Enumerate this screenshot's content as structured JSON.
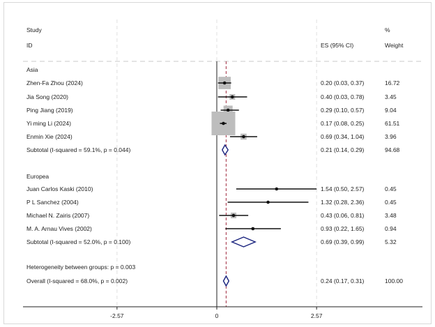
{
  "chart_data": {
    "type": "forest",
    "header": {
      "study": "Study",
      "id": "ID",
      "es": "ES (95% CI)",
      "pct": "%",
      "weight": "Weight"
    },
    "xaxis": {
      "ticks": [
        -2.57,
        0,
        2.57
      ],
      "tick_labels": [
        "-2.57",
        "0",
        "2.57"
      ],
      "range": [
        -5.2,
        5.2
      ]
    },
    "overall_line": 0.24,
    "rows": [
      {
        "kind": "group",
        "label": "Asia"
      },
      {
        "kind": "study",
        "label": "Zhen-Fa Zhou (2024)",
        "es": 0.2,
        "lo": 0.03,
        "hi": 0.37,
        "es_text": "0.20 (0.03, 0.37)",
        "weight": "16.72"
      },
      {
        "kind": "study",
        "label": "Jia Song (2020)",
        "es": 0.4,
        "lo": 0.03,
        "hi": 0.78,
        "es_text": "0.40 (0.03, 0.78)",
        "weight": "3.45"
      },
      {
        "kind": "study",
        "label": "Ping Jiang (2019)",
        "es": 0.29,
        "lo": 0.1,
        "hi": 0.57,
        "es_text": "0.29 (0.10, 0.57)",
        "weight": "9.04"
      },
      {
        "kind": "study",
        "label": "Yi ming Li (2024)",
        "es": 0.17,
        "lo": 0.08,
        "hi": 0.25,
        "es_text": "0.17 (0.08, 0.25)",
        "weight": "61.51"
      },
      {
        "kind": "study",
        "label": "Enmin Xie (2024)",
        "es": 0.69,
        "lo": 0.34,
        "hi": 1.04,
        "es_text": "0.69 (0.34, 1.04)",
        "weight": "3.96"
      },
      {
        "kind": "subtotal",
        "label": "Subtotal  (I-squared = 59.1%, p = 0.044)",
        "es": 0.21,
        "lo": 0.14,
        "hi": 0.29,
        "es_text": "0.21 (0.14, 0.29)",
        "weight": "94.68"
      },
      {
        "kind": "blank"
      },
      {
        "kind": "group",
        "label": "Europea"
      },
      {
        "kind": "study",
        "label": "Juan Carlos Kaski (2010)",
        "es": 1.54,
        "lo": 0.5,
        "hi": 2.57,
        "es_text": "1.54 (0.50, 2.57)",
        "weight": "0.45"
      },
      {
        "kind": "study",
        "label": "P L Sanchez (2004)",
        "es": 1.32,
        "lo": 0.28,
        "hi": 2.36,
        "es_text": "1.32 (0.28, 2.36)",
        "weight": "0.45"
      },
      {
        "kind": "study",
        "label": "Michael N. Zairis (2007)",
        "es": 0.43,
        "lo": 0.06,
        "hi": 0.81,
        "es_text": "0.43 (0.06, 0.81)",
        "weight": "3.48"
      },
      {
        "kind": "study",
        "label": "M. A. Arnau Vives (2002)",
        "es": 0.93,
        "lo": 0.22,
        "hi": 1.65,
        "es_text": "0.93 (0.22, 1.65)",
        "weight": "0.94"
      },
      {
        "kind": "subtotal",
        "label": "Subtotal  (I-squared = 52.0%, p = 0.100)",
        "es": 0.69,
        "lo": 0.39,
        "hi": 0.99,
        "es_text": "0.69 (0.39, 0.99)",
        "weight": "5.32"
      },
      {
        "kind": "blank"
      },
      {
        "kind": "note",
        "label": "Heterogeneity between groups: p = 0.003"
      },
      {
        "kind": "subtotal",
        "label": "Overall  (I-squared = 68.0%, p = 0.002)",
        "es": 0.24,
        "lo": 0.17,
        "hi": 0.31,
        "es_text": "0.24 (0.17, 0.31)",
        "weight": "100.00"
      }
    ],
    "colors": {
      "diamond": "#1a237e",
      "box": "#bdbdbd",
      "overall_line": "#a0283c",
      "grid": "#e0e0e0"
    }
  }
}
